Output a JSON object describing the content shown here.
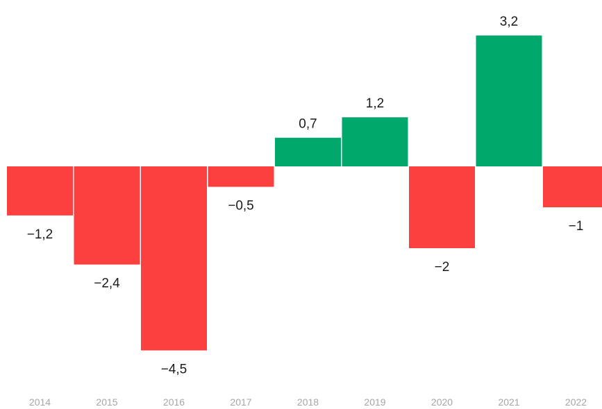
{
  "chart_data": {
    "type": "bar",
    "categories": [
      "2014",
      "2015",
      "2016",
      "2017",
      "2018",
      "2019",
      "2020",
      "2021",
      "2022"
    ],
    "values": [
      -1.2,
      -2.4,
      -4.5,
      -0.5,
      0.7,
      1.2,
      -2,
      3.2,
      -1
    ],
    "data_labels": [
      "−1,2",
      "−2,4",
      "−4,5",
      "−0,5",
      "0,7",
      "1,2",
      "−2",
      "3,2",
      "−1"
    ],
    "ylim": [
      -4.5,
      3.2
    ],
    "grid": false,
    "legend": "none",
    "colors": {
      "positive": "#00a86b",
      "negative": "#fc3f3f",
      "label_text": "#1a1a1a",
      "tick_text": "#a6a6a6"
    }
  }
}
